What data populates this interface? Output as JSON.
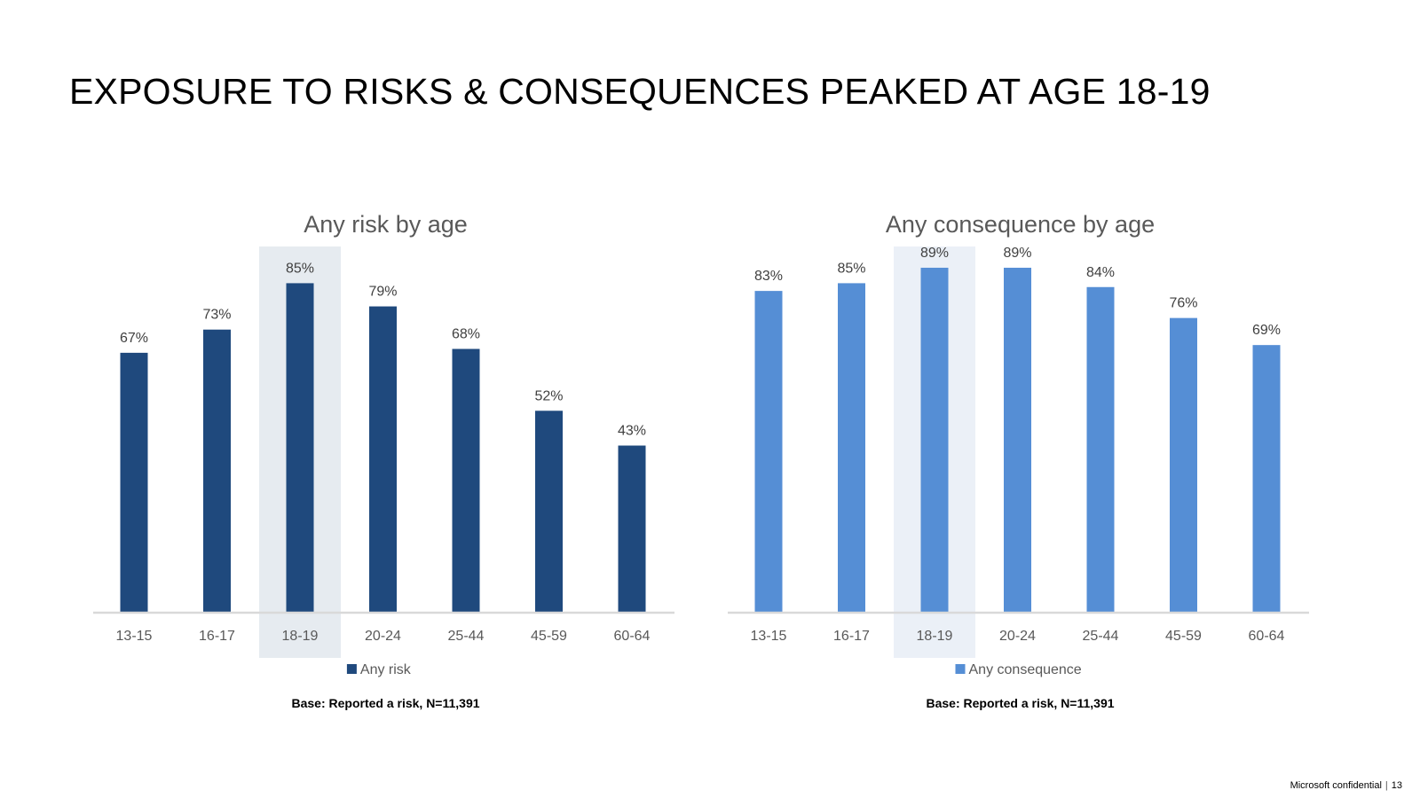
{
  "slide": {
    "title": "EXPOSURE TO RISKS & CONSEQUENCES PEAKED AT AGE 18-19",
    "footer_text": "Microsoft confidential",
    "page_number": "13"
  },
  "chart_data": [
    {
      "type": "bar",
      "title": "Any risk by age",
      "categories": [
        "13-15",
        "16-17",
        "18-19",
        "20-24",
        "25-44",
        "45-59",
        "60-64"
      ],
      "series": [
        {
          "name": "Any risk",
          "values": [
            67,
            73,
            85,
            79,
            68,
            52,
            43
          ]
        }
      ],
      "data_labels": [
        "67%",
        "73%",
        "85%",
        "79%",
        "68%",
        "52%",
        "43%"
      ],
      "highlight_category": "18-19",
      "base_note": "Base: Reported a risk, N=11,391",
      "ylim": [
        0,
        100
      ],
      "grid": false,
      "legend": "bottom",
      "bar_color": "#1f497d",
      "highlight_color": "#e6ebf0"
    },
    {
      "type": "bar",
      "title": "Any consequence by age",
      "categories": [
        "13-15",
        "16-17",
        "18-19",
        "20-24",
        "25-44",
        "45-59",
        "60-64"
      ],
      "series": [
        {
          "name": "Any consequence",
          "values": [
            83,
            85,
            89,
            89,
            84,
            76,
            69
          ]
        }
      ],
      "data_labels": [
        "83%",
        "85%",
        "89%",
        "89%",
        "84%",
        "76%",
        "69%"
      ],
      "highlight_category": "18-19",
      "base_note": "Base: Reported a risk, N=11,391",
      "ylim": [
        0,
        100
      ],
      "grid": false,
      "legend": "bottom",
      "bar_color": "#558ed5",
      "highlight_color": "#ebf0f7"
    }
  ]
}
